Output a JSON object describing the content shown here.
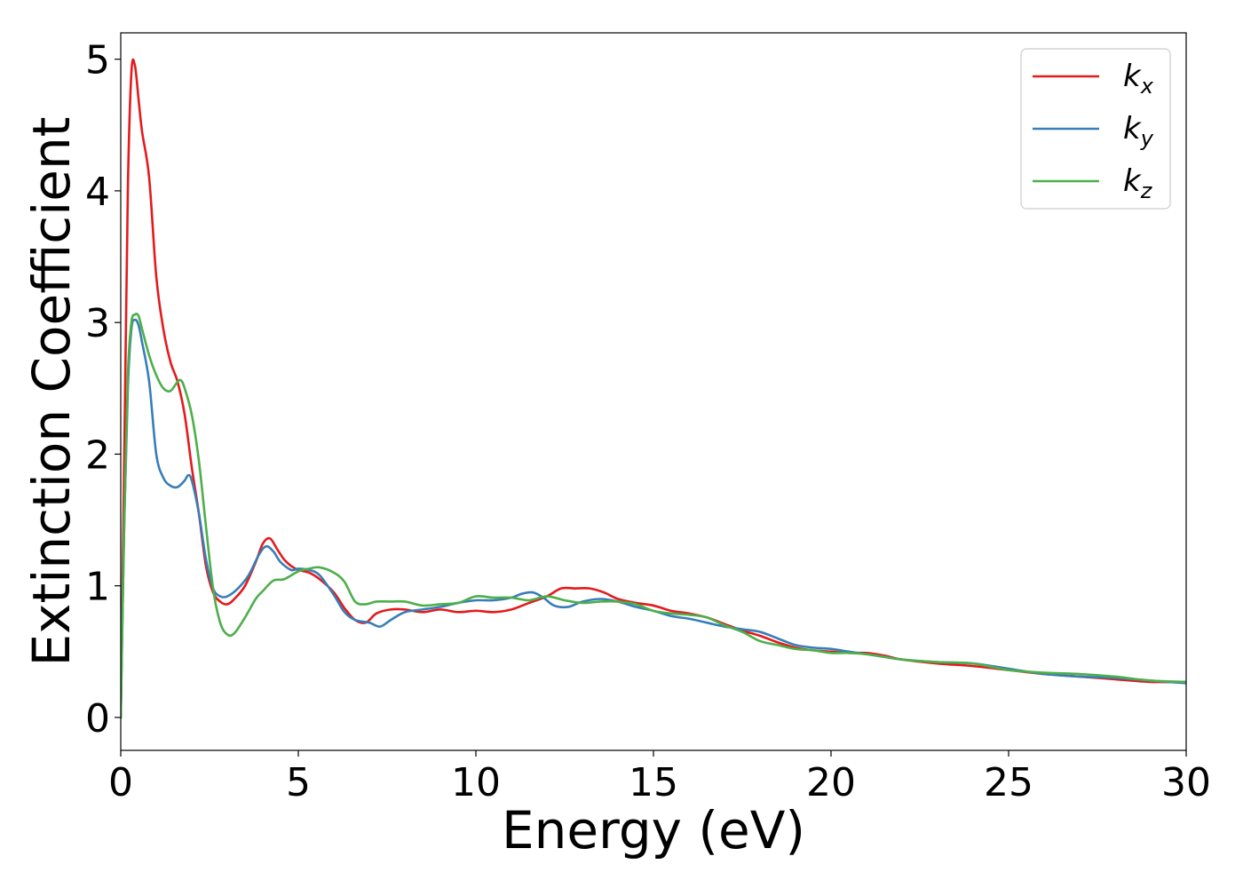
{
  "chart_data": {
    "type": "line",
    "xlabel": "Energy (eV)",
    "ylabel": "Extinction Coefficient",
    "xlim": [
      0,
      30
    ],
    "ylim": [
      -0.25,
      5.2
    ],
    "xticks": [
      0,
      5,
      10,
      15,
      20,
      25,
      30
    ],
    "yticks": [
      0,
      1,
      2,
      3,
      4,
      5
    ],
    "grid": false,
    "legend_position": "top-right",
    "series": [
      {
        "name": "k",
        "sub": "x",
        "color": "#e41a1c",
        "x": [
          0,
          0.1,
          0.2,
          0.3,
          0.4,
          0.5,
          0.6,
          0.8,
          1.0,
          1.2,
          1.4,
          1.6,
          1.8,
          2.0,
          2.2,
          2.4,
          2.6,
          2.8,
          3.0,
          3.2,
          3.5,
          3.8,
          4.0,
          4.2,
          4.4,
          4.6,
          4.8,
          5.0,
          5.3,
          5.6,
          6.0,
          6.3,
          6.6,
          6.9,
          7.2,
          7.6,
          8.0,
          8.5,
          9.0,
          9.5,
          10.0,
          10.5,
          11.0,
          11.5,
          12.0,
          12.4,
          12.8,
          13.2,
          13.6,
          14.0,
          14.5,
          15.0,
          15.5,
          16.0,
          16.5,
          17.0,
          17.5,
          18.0,
          18.5,
          19.0,
          19.5,
          20.0,
          20.5,
          21.0,
          21.5,
          22.0,
          23.0,
          24.0,
          25.0,
          26.0,
          27.0,
          28.0,
          29.0,
          30.0
        ],
        "y": [
          0.0,
          2.0,
          4.0,
          4.9,
          4.95,
          4.7,
          4.45,
          4.1,
          3.35,
          2.95,
          2.7,
          2.55,
          2.3,
          1.9,
          1.55,
          1.15,
          0.95,
          0.88,
          0.86,
          0.9,
          1.0,
          1.18,
          1.32,
          1.36,
          1.28,
          1.2,
          1.15,
          1.12,
          1.1,
          1.05,
          0.95,
          0.83,
          0.74,
          0.72,
          0.79,
          0.82,
          0.82,
          0.8,
          0.82,
          0.8,
          0.81,
          0.8,
          0.82,
          0.87,
          0.92,
          0.98,
          0.98,
          0.98,
          0.95,
          0.9,
          0.87,
          0.85,
          0.81,
          0.79,
          0.76,
          0.71,
          0.66,
          0.62,
          0.57,
          0.53,
          0.51,
          0.5,
          0.49,
          0.49,
          0.47,
          0.44,
          0.41,
          0.39,
          0.36,
          0.33,
          0.31,
          0.29,
          0.27,
          0.27
        ]
      },
      {
        "name": "k",
        "sub": "y",
        "color": "#377eb8",
        "x": [
          0,
          0.1,
          0.2,
          0.3,
          0.4,
          0.5,
          0.6,
          0.8,
          1.0,
          1.2,
          1.4,
          1.6,
          1.8,
          1.9,
          2.0,
          2.2,
          2.4,
          2.6,
          2.8,
          3.0,
          3.3,
          3.6,
          3.9,
          4.1,
          4.3,
          4.5,
          4.8,
          5.0,
          5.3,
          5.6,
          6.0,
          6.3,
          6.6,
          7.0,
          7.3,
          7.6,
          8.0,
          8.5,
          9.0,
          9.5,
          10.0,
          10.5,
          11.0,
          11.3,
          11.6,
          11.9,
          12.2,
          12.6,
          13.0,
          13.5,
          14.0,
          14.5,
          15.0,
          15.5,
          16.0,
          16.5,
          17.0,
          17.5,
          18.0,
          18.5,
          19.0,
          19.5,
          20.0,
          20.5,
          21.0,
          21.5,
          22.0,
          23.0,
          24.0,
          25.0,
          26.0,
          27.0,
          28.0,
          29.0,
          30.0
        ],
        "y": [
          0.0,
          1.5,
          2.5,
          2.95,
          3.02,
          2.98,
          2.85,
          2.55,
          2.0,
          1.82,
          1.76,
          1.75,
          1.8,
          1.84,
          1.8,
          1.55,
          1.2,
          0.98,
          0.92,
          0.92,
          0.98,
          1.08,
          1.24,
          1.3,
          1.26,
          1.18,
          1.12,
          1.13,
          1.12,
          1.08,
          0.93,
          0.8,
          0.74,
          0.72,
          0.69,
          0.74,
          0.8,
          0.82,
          0.84,
          0.87,
          0.89,
          0.89,
          0.91,
          0.94,
          0.95,
          0.91,
          0.85,
          0.84,
          0.88,
          0.9,
          0.88,
          0.84,
          0.81,
          0.77,
          0.75,
          0.72,
          0.69,
          0.67,
          0.65,
          0.6,
          0.55,
          0.53,
          0.52,
          0.5,
          0.48,
          0.46,
          0.44,
          0.42,
          0.41,
          0.37,
          0.33,
          0.31,
          0.3,
          0.28,
          0.26
        ]
      },
      {
        "name": "k",
        "sub": "z",
        "color": "#4daf4a",
        "x": [
          0,
          0.1,
          0.2,
          0.3,
          0.4,
          0.5,
          0.6,
          0.8,
          1.0,
          1.2,
          1.4,
          1.6,
          1.7,
          1.8,
          2.0,
          2.2,
          2.4,
          2.6,
          2.8,
          3.0,
          3.2,
          3.5,
          3.8,
          4.0,
          4.3,
          4.6,
          5.0,
          5.3,
          5.6,
          6.0,
          6.3,
          6.6,
          6.9,
          7.2,
          7.6,
          8.0,
          8.5,
          9.0,
          9.5,
          10.0,
          10.5,
          11.0,
          11.5,
          12.0,
          12.5,
          13.0,
          13.5,
          14.0,
          14.5,
          15.0,
          15.5,
          16.0,
          16.5,
          17.0,
          17.5,
          18.0,
          18.5,
          19.0,
          19.5,
          20.0,
          20.5,
          21.0,
          21.5,
          22.0,
          23.0,
          24.0,
          25.0,
          26.0,
          27.0,
          28.0,
          29.0,
          30.0
        ],
        "y": [
          0.0,
          1.5,
          2.6,
          3.0,
          3.06,
          3.05,
          2.95,
          2.75,
          2.6,
          2.5,
          2.48,
          2.55,
          2.56,
          2.5,
          2.3,
          1.95,
          1.45,
          0.98,
          0.72,
          0.63,
          0.64,
          0.76,
          0.9,
          0.96,
          1.04,
          1.05,
          1.11,
          1.13,
          1.14,
          1.1,
          1.03,
          0.88,
          0.86,
          0.88,
          0.88,
          0.88,
          0.85,
          0.86,
          0.87,
          0.92,
          0.91,
          0.91,
          0.89,
          0.92,
          0.89,
          0.87,
          0.88,
          0.88,
          0.86,
          0.81,
          0.79,
          0.78,
          0.76,
          0.7,
          0.65,
          0.58,
          0.55,
          0.52,
          0.51,
          0.49,
          0.49,
          0.48,
          0.46,
          0.44,
          0.42,
          0.41,
          0.36,
          0.34,
          0.33,
          0.31,
          0.28,
          0.27
        ]
      }
    ]
  }
}
